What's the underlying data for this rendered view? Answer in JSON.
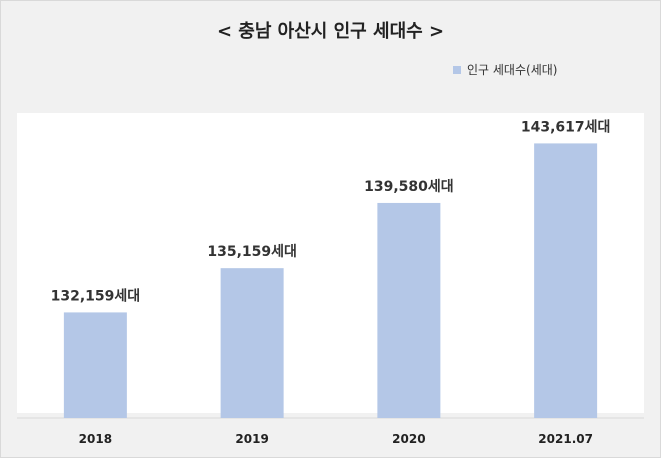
{
  "chart_data": {
    "type": "bar",
    "title": "< 충남 아산시 인구 세대수 >",
    "categories": [
      "2018",
      "2019",
      "2020",
      "2021.07"
    ],
    "series": [
      {
        "name": "인구 세대수(세대)",
        "values": [
          132159,
          135159,
          139580,
          143617
        ],
        "data_labels": [
          "132,159세대",
          "135,159세대",
          "139,580세대",
          "143,617세대"
        ]
      }
    ],
    "ylim": [
      125000,
      145000
    ],
    "grid": false,
    "legend_position": "top-right",
    "bar_color": "#b4c7e7"
  }
}
